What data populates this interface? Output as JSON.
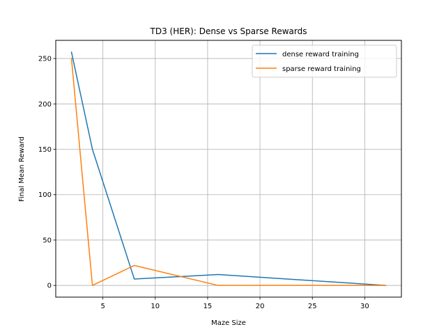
{
  "chart_data": {
    "type": "line",
    "title": "TD3 (HER): Dense vs Sparse Rewards",
    "xlabel": "Maze Size",
    "ylabel": "Final Mean Reward",
    "xlim": [
      0.5,
      33.5
    ],
    "ylim": [
      -12.9,
      270
    ],
    "xticks": [
      5,
      10,
      15,
      20,
      25,
      30
    ],
    "yticks": [
      0,
      50,
      100,
      150,
      200,
      250
    ],
    "grid": true,
    "legend_position": "top-right",
    "series": [
      {
        "name": "dense reward training",
        "color": "#1f77b4",
        "x": [
          2,
          4,
          8,
          16,
          32
        ],
        "y": [
          257,
          150,
          7,
          12,
          0
        ]
      },
      {
        "name": "sparse reward training",
        "color": "#ff7f0e",
        "x": [
          2,
          4,
          8,
          16,
          32
        ],
        "y": [
          250,
          0,
          22,
          0,
          0
        ]
      }
    ]
  }
}
